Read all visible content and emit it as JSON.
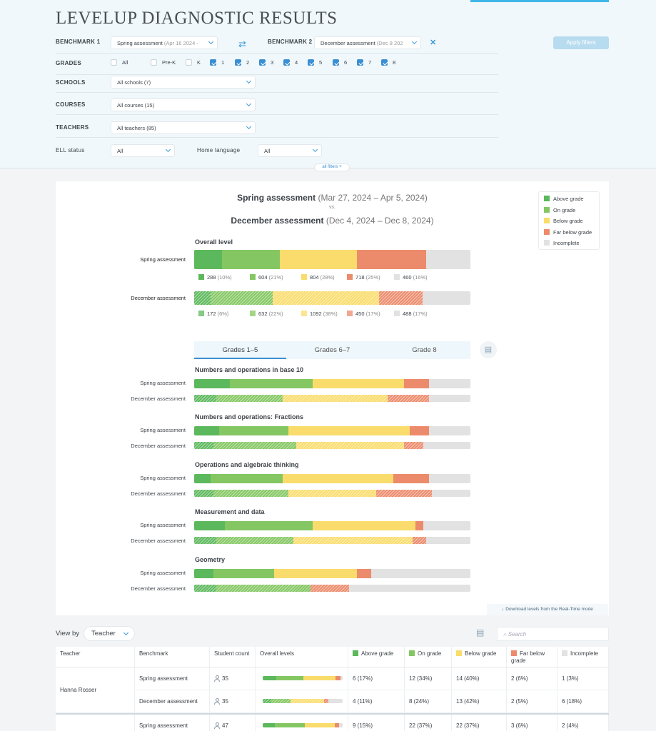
{
  "app_title": "LEVELUP DIAGNOSTIC RESULTS",
  "colors": {
    "above": "#5cb85c",
    "on": "#84c762",
    "below": "#f9dc6b",
    "far": "#ec8b6c",
    "incomplete": "#e2e2e2",
    "accent": "#3a8fd3"
  },
  "filters": {
    "benchmark1_label": "BENCHMARK 1",
    "benchmark1_value": "Spring assessment",
    "benchmark1_dim": "(Apr 16 2024 -",
    "benchmark2_label": "BENCHMARK 2",
    "benchmark2_value": "December assessment",
    "benchmark2_dim": "(Dec 8 202",
    "apply_label": "Apply filters",
    "grades_label": "GRADES",
    "grades": [
      {
        "label": "All",
        "checked": false
      },
      {
        "label": "Pre-K",
        "checked": false
      },
      {
        "label": "K",
        "checked": false
      },
      {
        "label": "1",
        "checked": true
      },
      {
        "label": "2",
        "checked": true
      },
      {
        "label": "3",
        "checked": true
      },
      {
        "label": "4",
        "checked": true
      },
      {
        "label": "5",
        "checked": true
      },
      {
        "label": "6",
        "checked": true
      },
      {
        "label": "7",
        "checked": true
      },
      {
        "label": "8",
        "checked": true
      }
    ],
    "schools_label": "SCHOOLS",
    "schools_value": "All schools (7)",
    "courses_label": "COURSES",
    "courses_value": "All courses (15)",
    "teachers_label": "TEACHERS",
    "teachers_value": "All teachers (85)",
    "ell_label": "ELL status",
    "ell_value": "All",
    "home_language_label": "Home language",
    "home_language_value": "All",
    "all_filters_label": "all filters"
  },
  "comparison": {
    "b1_name": "Spring assessment",
    "b1_dates": "(Mar 27, 2024 – Apr 5, 2024)",
    "vs": "vs.",
    "b2_name": "December assessment",
    "b2_dates": "(Dec 4, 2024 – Dec 8, 2024)"
  },
  "legend": [
    "Above grade",
    "On grade",
    "Below grade",
    "Far below grade",
    "Incomplete"
  ],
  "chart_data": {
    "type": "bar",
    "stacked": true,
    "orientation": "horizontal",
    "categories_levels": [
      "Above grade",
      "On grade",
      "Below grade",
      "Far below grade",
      "Incomplete"
    ],
    "overall": {
      "title": "Overall level",
      "rows": [
        {
          "label": "Spring assessment",
          "counts": [
            288,
            604,
            804,
            718,
            460
          ],
          "pct": [
            "10%",
            "21%",
            "28%",
            "25%",
            "16%"
          ]
        },
        {
          "label": "December assessment",
          "counts": [
            172,
            632,
            1092,
            450,
            488
          ],
          "pct": [
            "6%",
            "22%",
            "38%",
            "17%",
            "17%"
          ]
        }
      ]
    },
    "tabs": [
      "Grades 1–5",
      "Grades 6–7",
      "Grade 8"
    ],
    "active_tab": 0,
    "domains": [
      {
        "title": "Numbers and operations in base 10",
        "rows": [
          {
            "label": "Spring assessment",
            "values": [
              13,
              30,
              33,
              9,
              15
            ]
          },
          {
            "label": "December assessment",
            "values": [
              8,
              24,
              38,
              15,
              15
            ]
          }
        ]
      },
      {
        "title": "Numbers and operations: Fractions",
        "rows": [
          {
            "label": "Spring assessment",
            "values": [
              9,
              25,
              44,
              7,
              15
            ]
          },
          {
            "label": "December assessment",
            "values": [
              7,
              30,
              39,
              7,
              17
            ]
          }
        ]
      },
      {
        "title": "Operations and algebraic thinking",
        "rows": [
          {
            "label": "Spring assessment",
            "values": [
              6,
              26,
              40,
              13,
              15
            ]
          },
          {
            "label": "December assessment",
            "values": [
              7,
              27,
              32,
              20,
              14
            ]
          }
        ]
      },
      {
        "title": "Measurement and data",
        "rows": [
          {
            "label": "Spring assessment",
            "values": [
              11,
              32,
              37,
              3,
              17
            ]
          },
          {
            "label": "December assessment",
            "values": [
              8,
              28,
              43,
              5,
              16
            ]
          }
        ]
      },
      {
        "title": "Geometry",
        "rows": [
          {
            "label": "Spring assessment",
            "values": [
              7,
              22,
              30,
              5,
              36
            ]
          },
          {
            "label": "December assessment",
            "values": [
              8,
              34,
              0,
              14,
              44
            ]
          }
        ]
      }
    ]
  },
  "download_label": "↓  Download levels from the Real-Time mode",
  "view_by": {
    "label": "View by",
    "value": "Teacher"
  },
  "search_placeholder": "Search",
  "table": {
    "headers": [
      "Teacher",
      "Benchmark",
      "Student count",
      "Overall levels",
      "Above grade",
      "On grade",
      "Below grade",
      "Far below grade",
      "Incomplete"
    ],
    "rows": [
      {
        "teacher": "Hanna Rosser",
        "benchmark": "Spring assessment",
        "count": "35",
        "levels": [
          17,
          34,
          40,
          6,
          3
        ],
        "cells": [
          "6 (17%)",
          "12 (34%)",
          "14 (40%)",
          "2 (6%)",
          "1 (3%)"
        ]
      },
      {
        "teacher": "",
        "benchmark": "December assessment",
        "count": "35",
        "levels": [
          11,
          24,
          42,
          5,
          18
        ],
        "cells": [
          "4 (11%)",
          "8 (24%)",
          "13 (42%)",
          "2 (5%)",
          "6 (18%)"
        ]
      },
      {
        "teacher": "",
        "benchmark": "Spring assessment",
        "count": "47",
        "levels": [
          15,
          37,
          37,
          6,
          4
        ],
        "cells": [
          "9 (15%)",
          "22 (37%)",
          "22 (37%)",
          "3 (6%)",
          "2 (4%)"
        ]
      }
    ]
  }
}
